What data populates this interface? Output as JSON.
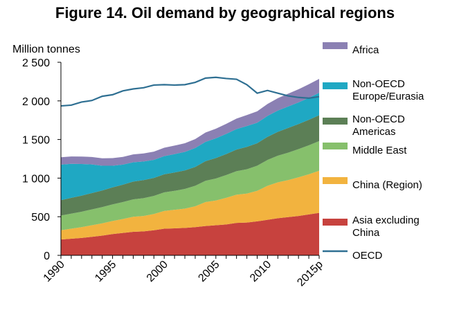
{
  "chart_data": {
    "type": "area",
    "title": "Figure 14. Oil demand by geographical regions",
    "ylabel": "Million tonnes",
    "xlabel": "",
    "x": [
      1990,
      1991,
      1992,
      1993,
      1994,
      1995,
      1996,
      1997,
      1998,
      1999,
      2000,
      2001,
      2002,
      2003,
      2004,
      2005,
      2006,
      2007,
      2008,
      2009,
      2010,
      2011,
      2012,
      2013,
      2014,
      2015
    ],
    "x_tick_values": [
      1990,
      1995,
      2000,
      2005,
      2010,
      2015
    ],
    "x_tick_labels": [
      "1990",
      "1995",
      "2000",
      "2005",
      "2010",
      "2015p"
    ],
    "y_tick_values": [
      0,
      500,
      1000,
      1500,
      2000,
      2500
    ],
    "y_tick_labels": [
      "0",
      "500",
      "1 000",
      "1 500",
      "2 000",
      "2 500"
    ],
    "ylim": [
      0,
      2500
    ],
    "xlim": [
      1990,
      2015
    ],
    "stack_order_bottom_to_top": [
      "Asia excluding China",
      "China (Region)",
      "Middle East",
      "Non-OECD Americas",
      "Non-OECD Europe/Eurasia",
      "Africa"
    ],
    "series": [
      {
        "name": "Africa",
        "kind": "stacked-area",
        "color": "#8B80B3",
        "legend_lines": [
          "Africa"
        ],
        "values": [
          95,
          95,
          96,
          97,
          97,
          99,
          100,
          102,
          104,
          106,
          108,
          110,
          112,
          115,
          120,
          125,
          130,
          136,
          142,
          148,
          155,
          160,
          165,
          170,
          175,
          180
        ]
      },
      {
        "name": "Non-OECD Europe/Eurasia",
        "kind": "stacked-area",
        "color": "#1FA8C3",
        "legend_lines": [
          "Non-OECD",
          "Europe/Eurasia"
        ],
        "values": [
          460,
          440,
          410,
          370,
          320,
          280,
          260,
          250,
          240,
          235,
          235,
          238,
          240,
          245,
          250,
          255,
          260,
          265,
          270,
          265,
          270,
          275,
          278,
          280,
          285,
          290
        ]
      },
      {
        "name": "Non-OECD Americas",
        "kind": "stacked-area",
        "color": "#5C7F56",
        "legend_lines": [
          "Non-OECD",
          "Americas"
        ],
        "values": [
          200,
          205,
          208,
          212,
          215,
          220,
          225,
          230,
          235,
          232,
          235,
          238,
          240,
          245,
          255,
          265,
          272,
          280,
          290,
          292,
          300,
          310,
          320,
          325,
          330,
          335
        ]
      },
      {
        "name": "Middle East",
        "kind": "stacked-area",
        "color": "#86C06C",
        "legend_lines": [
          "Middle East"
        ],
        "values": [
          190,
          195,
          200,
          205,
          210,
          215,
          220,
          225,
          230,
          235,
          240,
          245,
          255,
          265,
          275,
          285,
          295,
          305,
          315,
          325,
          335,
          345,
          355,
          365,
          375,
          385
        ]
      },
      {
        "name": "China (Region)",
        "kind": "stacked-area",
        "color": "#F2B33F",
        "legend_lines": [
          "China (Region)"
        ],
        "values": [
          120,
          130,
          140,
          150,
          160,
          170,
          180,
          195,
          200,
          210,
          230,
          240,
          250,
          270,
          310,
          320,
          345,
          365,
          375,
          395,
          440,
          465,
          480,
          500,
          520,
          545
        ]
      },
      {
        "name": "Asia excluding China",
        "kind": "stacked-area",
        "color": "#C7423E",
        "legend_lines": [
          "Asia excluding",
          "China"
        ],
        "values": [
          205,
          215,
          225,
          240,
          255,
          275,
          290,
          305,
          310,
          325,
          345,
          350,
          355,
          365,
          380,
          390,
          400,
          420,
          425,
          440,
          460,
          480,
          495,
          510,
          530,
          550
        ]
      },
      {
        "name": "OECD",
        "kind": "line",
        "color": "#2E6F92",
        "legend_lines": [
          "OECD"
        ],
        "values": [
          1935,
          1945,
          1985,
          2005,
          2060,
          2080,
          2130,
          2155,
          2170,
          2205,
          2210,
          2205,
          2210,
          2240,
          2295,
          2305,
          2290,
          2280,
          2210,
          2100,
          2135,
          2100,
          2065,
          2045,
          2035,
          2055
        ]
      }
    ],
    "legend_placement": "right"
  }
}
